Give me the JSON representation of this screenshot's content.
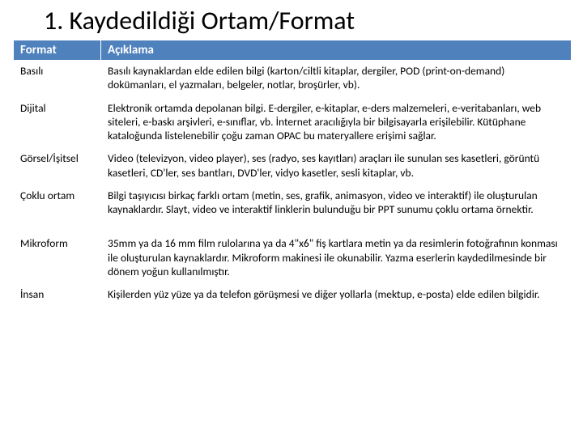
{
  "title": "1. Kaydedildiği Ortam/Format",
  "table": {
    "header": {
      "format": "Format",
      "desc": "Açıklama"
    },
    "rows": [
      {
        "format": "Basılı",
        "desc": "Basılı kaynaklardan elde edilen bilgi (karton/ciltli kitaplar, dergiler, POD (print-on-demand) dokümanları, el yazmaları, belgeler, notlar, broşürler, vb)."
      },
      {
        "format": "Dijital",
        "desc": "Elektronik ortamda depolanan bilgi. E-dergiler, e-kitaplar, e-ders malzemeleri, e-veritabanları, web siteleri, e-baskı arşivleri, e-sınıflar, vb. İnternet aracılığıyla bir bilgisayarla erişilebilir. Kütüphane kataloğunda listelenebilir çoğu zaman OPAC bu materyallere erişimi sağlar."
      },
      {
        "format": "Görsel/İşitsel",
        "desc": "Video (televizyon, video player), ses (radyo, ses kayıtları) araçları ile sunulan ses kasetleri, görüntü kasetleri, CD'ler, ses bantları, DVD'ler, vidyo kasetler, sesli kitaplar, vb."
      },
      {
        "format": "Çoklu ortam",
        "desc": "Bilgi taşıyıcısı birkaç farklı ortam (metin, ses, grafik, animasyon, video ve interaktif) ile oluşturulan kaynaklardır. Slayt, video ve interaktif linklerin bulunduğu bir PPT sunumu çoklu ortama örnektir."
      },
      {
        "format": "Mikroform",
        "desc": "35mm ya da 16 mm film rulolarına ya da 4\"x6\" fiş kartlara metin ya da resimlerin fotoğrafının konması ile oluşturulan kaynaklardır. Mikroform makinesi ile okunabilir. Yazma eserlerin kaydedilmesinde bir dönem yoğun kullanılmıştır."
      },
      {
        "format": "İnsan",
        "desc": "Kişilerden yüz yüze ya da telefon görüşmesi ve diğer yollarla (mektup, e-posta) elde edilen bilgidir."
      }
    ]
  },
  "colors": {
    "header_bg": "#4f81bd",
    "header_fg": "#ffffff",
    "text": "#000000",
    "background": "#ffffff"
  }
}
